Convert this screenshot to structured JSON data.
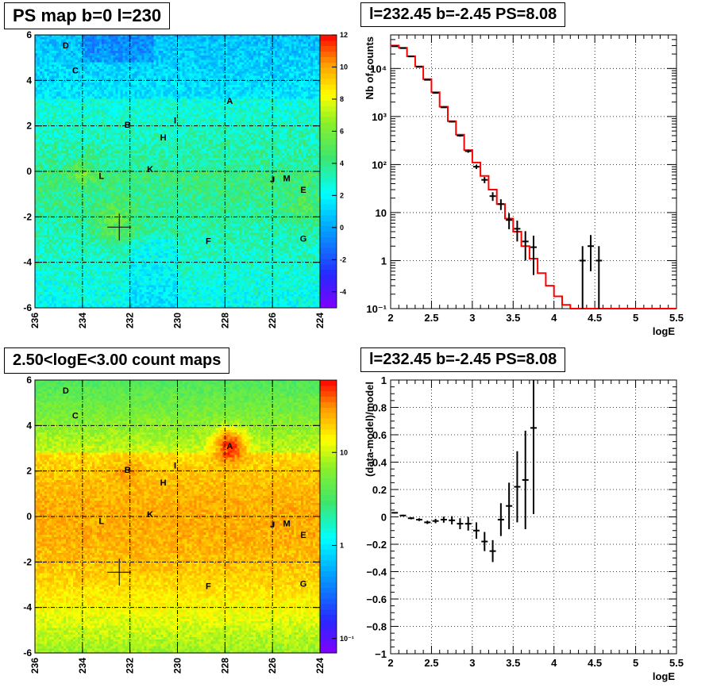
{
  "chart_data": [
    {
      "type": "heatmap",
      "title": "PS map b=0 l=230",
      "xlim": [
        236,
        224
      ],
      "ylim": [
        -6,
        6
      ],
      "x_ticks": [
        "236",
        "234",
        "232",
        "230",
        "228",
        "226",
        "224"
      ],
      "y_ticks": [
        "-6",
        "-4",
        "-2",
        "0",
        "2",
        "4",
        "6"
      ],
      "colorbar": {
        "scale": "linear",
        "range": [
          -5,
          12
        ],
        "ticks": [
          "-4",
          "-2",
          "0",
          "2",
          "4",
          "6",
          "8",
          "10",
          "12"
        ]
      },
      "grid": true,
      "marker": {
        "l": 232.45,
        "b": -2.45
      },
      "sources": [
        {
          "label": "D",
          "l": 234.7,
          "b": 5.55
        },
        {
          "label": "C",
          "l": 234.3,
          "b": 4.45
        },
        {
          "label": "A",
          "l": 227.8,
          "b": 3.1
        },
        {
          "label": "B",
          "l": 232.1,
          "b": 2.05
        },
        {
          "label": "I",
          "l": 230.1,
          "b": 2.25
        },
        {
          "label": "H",
          "l": 230.6,
          "b": 1.5
        },
        {
          "label": "K",
          "l": 231.15,
          "b": 0.1
        },
        {
          "label": "L",
          "l": 233.2,
          "b": -0.2
        },
        {
          "label": "J",
          "l": 226.0,
          "b": -0.35
        },
        {
          "label": "M",
          "l": 225.4,
          "b": -0.3
        },
        {
          "label": "E",
          "l": 224.7,
          "b": -0.8
        },
        {
          "label": "F",
          "l": 228.7,
          "b": -3.05
        },
        {
          "label": "G",
          "l": 224.7,
          "b": -2.95
        }
      ]
    },
    {
      "type": "line",
      "title": "l=232.45 b=-2.45 PS=8.08",
      "xlabel": "logE",
      "ylabel": "Nb of counts",
      "xlim": [
        2,
        5.5
      ],
      "ylim": [
        0.1,
        50000
      ],
      "yscale": "log",
      "x_ticks": [
        "2",
        "2.5",
        "3",
        "3.5",
        "4",
        "4.5",
        "5",
        "5.5"
      ],
      "y_ticks": [
        "10⁻¹",
        "1",
        "10",
        "10²",
        "10³",
        "10⁴"
      ],
      "grid": true,
      "model_color": "#ff0000",
      "bin_edges": [
        2.0,
        2.1,
        2.2,
        2.3,
        2.4,
        2.5,
        2.6,
        2.7,
        2.8,
        2.9,
        3.0,
        3.1,
        3.2,
        3.3,
        3.4,
        3.5,
        3.6,
        3.7,
        3.8,
        3.9,
        4.0,
        4.1,
        4.2,
        4.3,
        4.4,
        4.5,
        4.6,
        4.7,
        4.8,
        4.9,
        5.0,
        5.1,
        5.2,
        5.3,
        5.4,
        5.5
      ],
      "model_values": [
        30000,
        27000,
        18000,
        11000,
        6000,
        3200,
        1600,
        800,
        420,
        200,
        110,
        58,
        30,
        15,
        7.5,
        4.0,
        2.0,
        1.1,
        0.55,
        0.3,
        0.18,
        0.12,
        0.1,
        0.1,
        0.1,
        0.1,
        0.1,
        0.1,
        0.1,
        0.1,
        0.1,
        0.1,
        0.1,
        0.1,
        0.1
      ],
      "data_points": [
        {
          "x": 2.05,
          "y": 29000,
          "lo": 28800,
          "hi": 29200
        },
        {
          "x": 2.15,
          "y": 26500,
          "lo": 26300,
          "hi": 26700
        },
        {
          "x": 2.25,
          "y": 17800,
          "lo": 17650,
          "hi": 17950
        },
        {
          "x": 2.35,
          "y": 10800,
          "lo": 10700,
          "hi": 10900
        },
        {
          "x": 2.45,
          "y": 5800,
          "lo": 5720,
          "hi": 5880
        },
        {
          "x": 2.55,
          "y": 3100,
          "lo": 3040,
          "hi": 3160
        },
        {
          "x": 2.65,
          "y": 1550,
          "lo": 1510,
          "hi": 1590
        },
        {
          "x": 2.75,
          "y": 780,
          "lo": 752,
          "hi": 808
        },
        {
          "x": 2.85,
          "y": 400,
          "lo": 380,
          "hi": 420
        },
        {
          "x": 2.95,
          "y": 190,
          "lo": 176,
          "hi": 204
        },
        {
          "x": 3.05,
          "y": 90,
          "lo": 81,
          "hi": 99
        },
        {
          "x": 3.15,
          "y": 48,
          "lo": 41,
          "hi": 55
        },
        {
          "x": 3.25,
          "y": 22,
          "lo": 17.5,
          "hi": 26.5
        },
        {
          "x": 3.35,
          "y": 15,
          "lo": 11.3,
          "hi": 18.9
        },
        {
          "x": 3.45,
          "y": 7,
          "lo": 4.5,
          "hi": 9.7
        },
        {
          "x": 3.55,
          "y": 4.6,
          "lo": 2.5,
          "hi": 6.8
        },
        {
          "x": 3.65,
          "y": 2.5,
          "lo": 1.0,
          "hi": 4.1
        },
        {
          "x": 3.75,
          "y": 1.9,
          "lo": 0.5,
          "hi": 3.3
        },
        {
          "x": 4.35,
          "y": 1,
          "lo": 0.05,
          "hi": 2.0
        },
        {
          "x": 4.45,
          "y": 2,
          "lo": 0.6,
          "hi": 3.4
        },
        {
          "x": 4.55,
          "y": 1,
          "lo": 0.05,
          "hi": 2.0
        }
      ]
    },
    {
      "type": "heatmap",
      "title": "2.50<logE<3.00 count maps",
      "xlim": [
        236,
        224
      ],
      "ylim": [
        -6,
        6
      ],
      "x_ticks": [
        "236",
        "234",
        "232",
        "230",
        "228",
        "226",
        "224"
      ],
      "y_ticks": [
        "-6",
        "-4",
        "-2",
        "0",
        "2",
        "4",
        "6"
      ],
      "colorbar": {
        "scale": "log",
        "range": [
          0.07,
          60
        ],
        "ticks": [
          "10⁻¹",
          "1",
          "10"
        ]
      },
      "grid": true,
      "marker": {
        "l": 232.45,
        "b": -2.45
      },
      "sources": [
        {
          "label": "D",
          "l": 234.7,
          "b": 5.55
        },
        {
          "label": "C",
          "l": 234.3,
          "b": 4.45
        },
        {
          "label": "A",
          "l": 227.8,
          "b": 3.1
        },
        {
          "label": "B",
          "l": 232.1,
          "b": 2.05
        },
        {
          "label": "I",
          "l": 230.1,
          "b": 2.25
        },
        {
          "label": "H",
          "l": 230.6,
          "b": 1.5
        },
        {
          "label": "K",
          "l": 231.15,
          "b": 0.1
        },
        {
          "label": "L",
          "l": 233.2,
          "b": -0.2
        },
        {
          "label": "J",
          "l": 226.0,
          "b": -0.35
        },
        {
          "label": "M",
          "l": 225.4,
          "b": -0.3
        },
        {
          "label": "E",
          "l": 224.7,
          "b": -0.8
        },
        {
          "label": "F",
          "l": 228.7,
          "b": -3.05
        },
        {
          "label": "G",
          "l": 224.7,
          "b": -2.95
        }
      ]
    },
    {
      "type": "scatter",
      "title": "l=232.45 b=-2.45 PS=8.08",
      "xlabel": "logE",
      "ylabel": "(data-model)/model",
      "xlim": [
        2,
        5.5
      ],
      "ylim": [
        -1,
        1
      ],
      "x_ticks": [
        "2",
        "2.5",
        "3",
        "3.5",
        "4",
        "4.5",
        "5",
        "5.5"
      ],
      "y_ticks": [
        "−1",
        "−0.8",
        "−0.6",
        "−0.4",
        "−0.2",
        "0",
        "0.2",
        "0.4",
        "0.6",
        "0.8",
        "1"
      ],
      "grid": true,
      "points": [
        {
          "x": 2.05,
          "y": 0.03,
          "err": 0.005
        },
        {
          "x": 2.15,
          "y": 0.01,
          "err": 0.006
        },
        {
          "x": 2.25,
          "y": -0.01,
          "err": 0.008
        },
        {
          "x": 2.35,
          "y": -0.02,
          "err": 0.01
        },
        {
          "x": 2.45,
          "y": -0.04,
          "err": 0.012
        },
        {
          "x": 2.55,
          "y": -0.03,
          "err": 0.016
        },
        {
          "x": 2.65,
          "y": -0.02,
          "err": 0.022
        },
        {
          "x": 2.75,
          "y": -0.025,
          "err": 0.03
        },
        {
          "x": 2.85,
          "y": -0.05,
          "err": 0.04
        },
        {
          "x": 2.95,
          "y": -0.05,
          "err": 0.05
        },
        {
          "x": 3.05,
          "y": -0.1,
          "err": 0.06
        },
        {
          "x": 3.15,
          "y": -0.18,
          "err": 0.07
        },
        {
          "x": 3.25,
          "y": -0.25,
          "err": 0.08
        },
        {
          "x": 3.35,
          "y": -0.02,
          "err": 0.12
        },
        {
          "x": 3.45,
          "y": 0.08,
          "err": 0.17
        },
        {
          "x": 3.55,
          "y": 0.22,
          "err": 0.26
        },
        {
          "x": 3.65,
          "y": 0.27,
          "err": 0.36
        },
        {
          "x": 3.75,
          "y": 0.65,
          "err": 0.63
        }
      ]
    }
  ]
}
